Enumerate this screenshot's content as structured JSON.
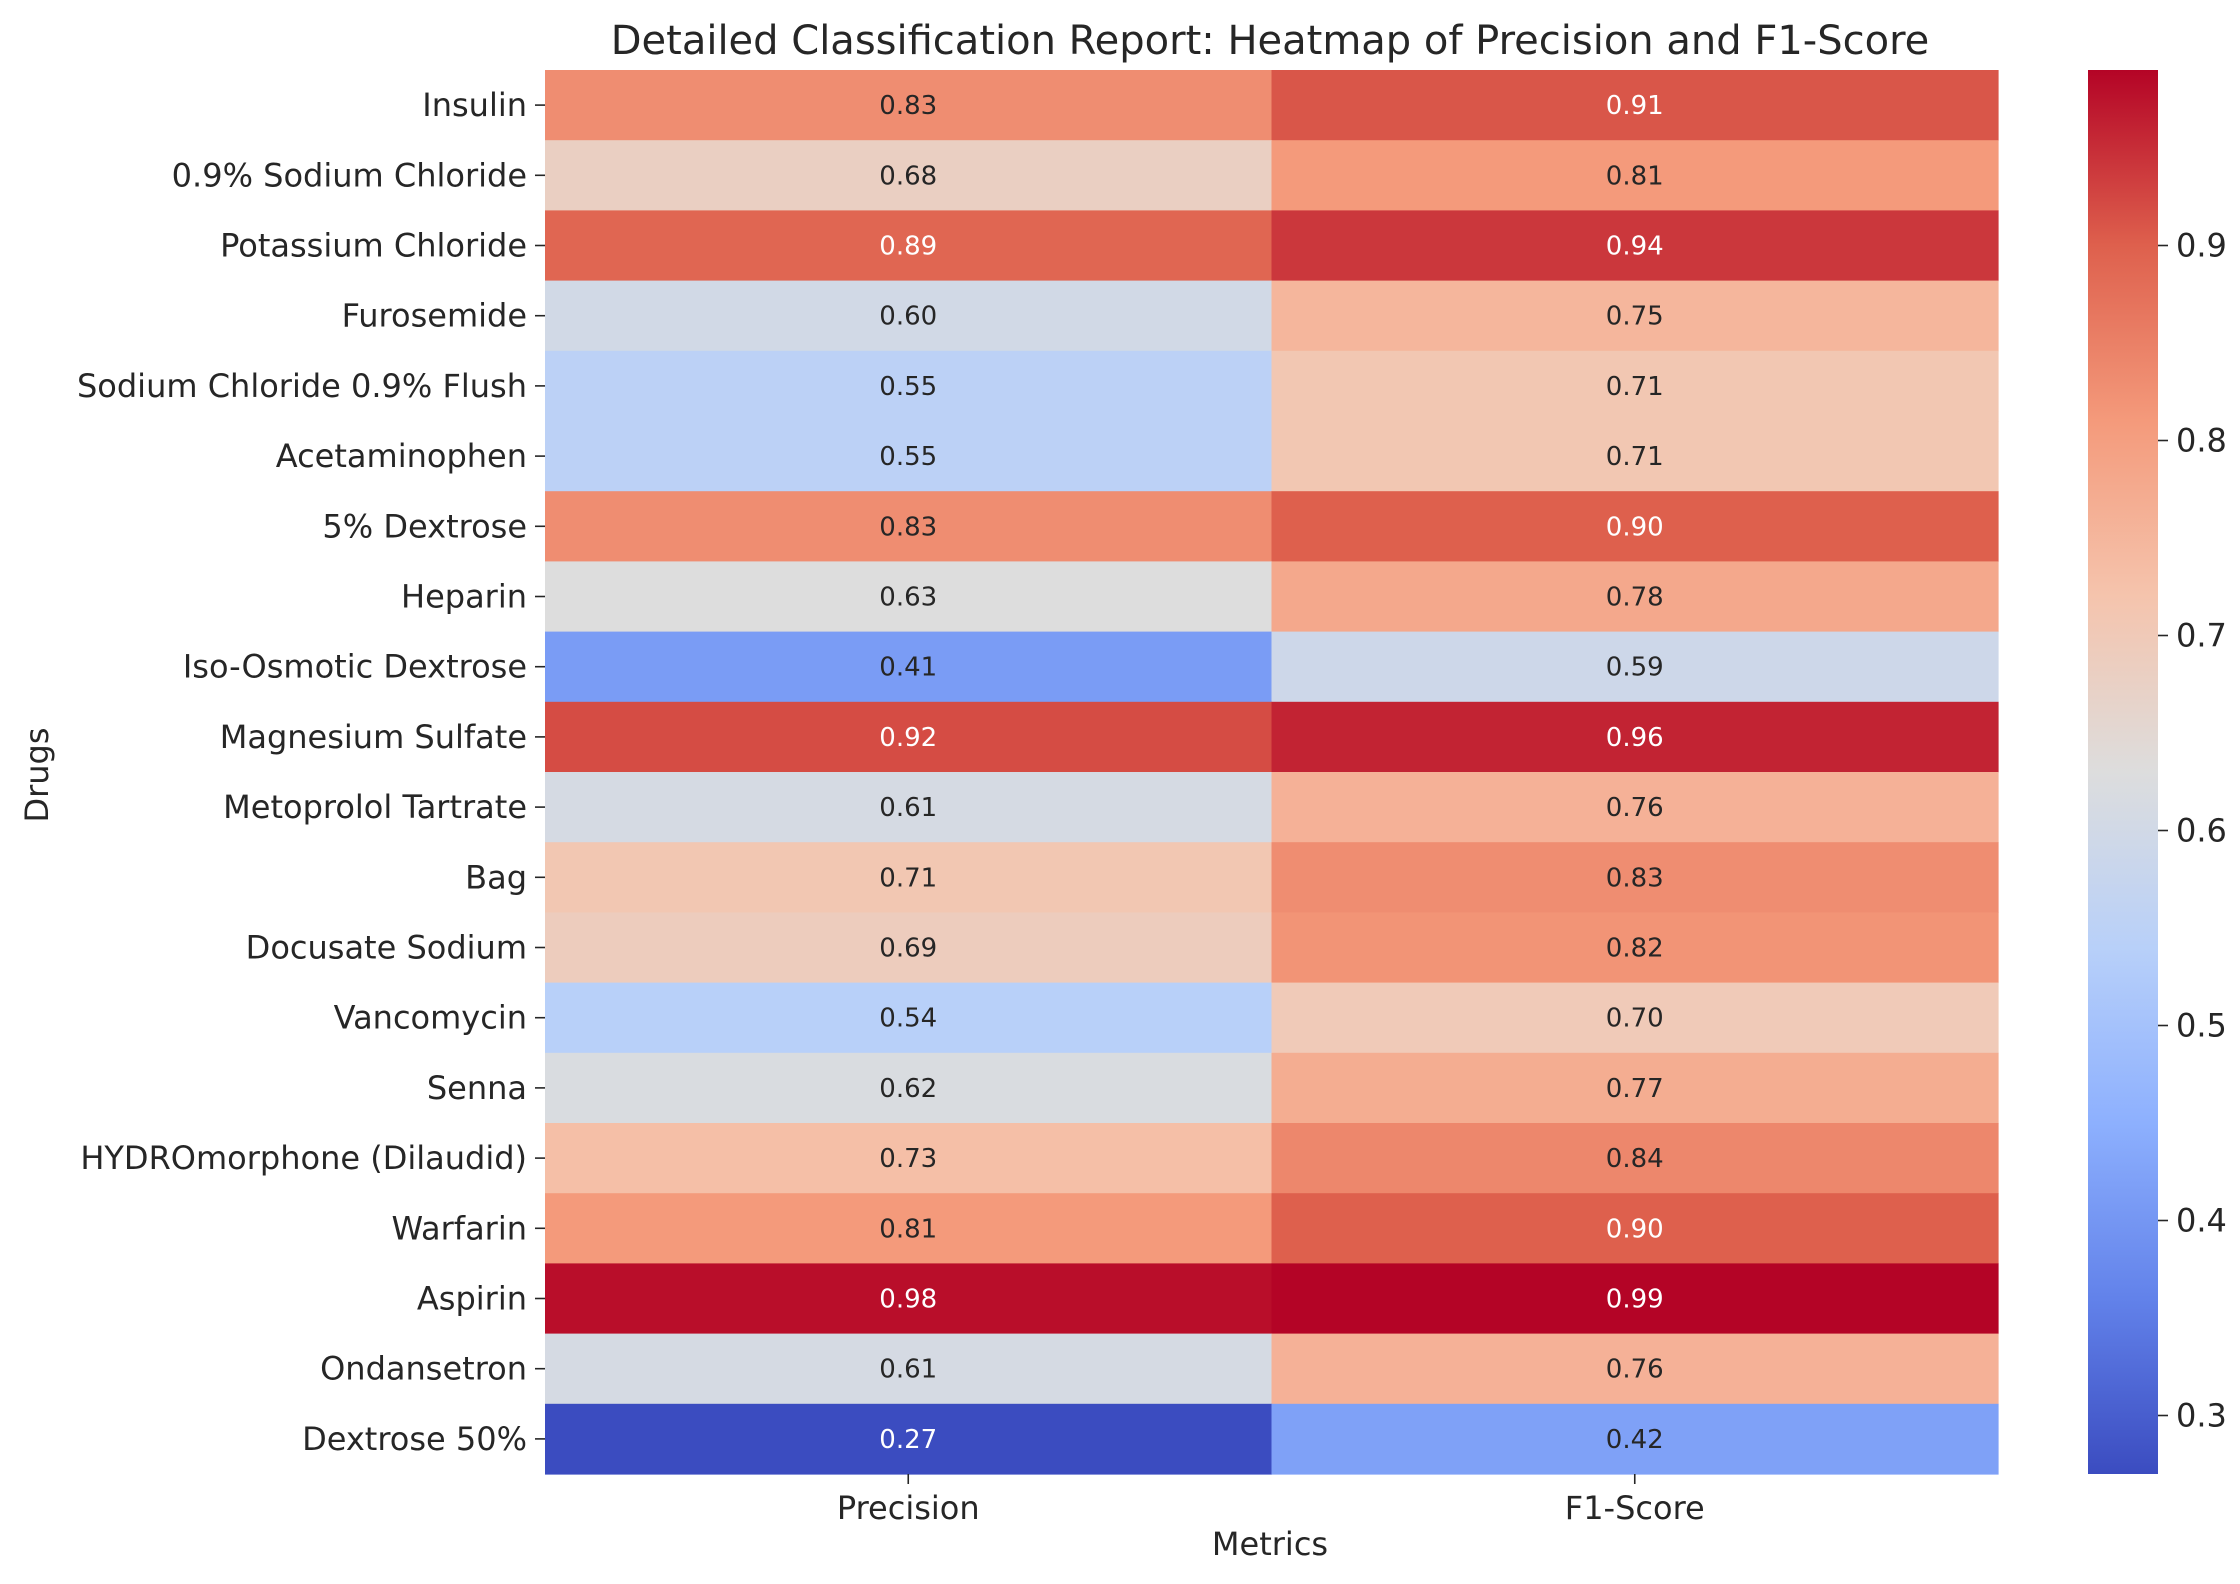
{
  "chart_data": {
    "type": "heatmap",
    "title": "Detailed Classification Report: Heatmap of Precision and F1-Score",
    "xlabel": "Metrics",
    "ylabel": "Drugs",
    "columns": [
      "Precision",
      "F1-Score"
    ],
    "rows": [
      "Insulin",
      "0.9% Sodium Chloride",
      "Potassium Chloride",
      "Furosemide",
      "Sodium Chloride 0.9% Flush",
      "Acetaminophen",
      "5% Dextrose",
      "Heparin",
      "Iso-Osmotic Dextrose",
      "Magnesium Sulfate",
      "Metoprolol Tartrate",
      "Bag",
      "Docusate Sodium",
      "Vancomycin",
      "Senna",
      "HYDROmorphone (Dilaudid)",
      "Warfarin",
      "Aspirin",
      "Ondansetron",
      "Dextrose 50%"
    ],
    "values": [
      [
        0.83,
        0.91
      ],
      [
        0.68,
        0.81
      ],
      [
        0.89,
        0.94
      ],
      [
        0.6,
        0.75
      ],
      [
        0.55,
        0.71
      ],
      [
        0.55,
        0.71
      ],
      [
        0.83,
        0.9
      ],
      [
        0.63,
        0.78
      ],
      [
        0.41,
        0.59
      ],
      [
        0.92,
        0.96
      ],
      [
        0.61,
        0.76
      ],
      [
        0.71,
        0.83
      ],
      [
        0.69,
        0.82
      ],
      [
        0.54,
        0.7
      ],
      [
        0.62,
        0.77
      ],
      [
        0.73,
        0.84
      ],
      [
        0.81,
        0.9
      ],
      [
        0.98,
        0.99
      ],
      [
        0.61,
        0.76
      ],
      [
        0.27,
        0.42
      ]
    ],
    "value_labels": [
      [
        "0.83",
        "0.91"
      ],
      [
        "0.68",
        "0.81"
      ],
      [
        "0.89",
        "0.94"
      ],
      [
        "0.60",
        "0.75"
      ],
      [
        "0.55",
        "0.71"
      ],
      [
        "0.55",
        "0.71"
      ],
      [
        "0.83",
        "0.90"
      ],
      [
        "0.63",
        "0.78"
      ],
      [
        "0.41",
        "0.59"
      ],
      [
        "0.92",
        "0.96"
      ],
      [
        "0.61",
        "0.76"
      ],
      [
        "0.71",
        "0.83"
      ],
      [
        "0.69",
        "0.82"
      ],
      [
        "0.54",
        "0.70"
      ],
      [
        "0.62",
        "0.77"
      ],
      [
        "0.73",
        "0.84"
      ],
      [
        "0.81",
        "0.90"
      ],
      [
        "0.98",
        "0.99"
      ],
      [
        "0.61",
        "0.76"
      ],
      [
        "0.27",
        "0.42"
      ]
    ],
    "colormap": "coolwarm",
    "color_range": [
      0.27,
      0.99
    ],
    "colorbar_ticks": [
      0.3,
      0.4,
      0.5,
      0.6,
      0.7,
      0.8,
      0.9
    ],
    "colorbar_tick_labels": [
      "0.3",
      "0.4",
      "0.5",
      "0.6",
      "0.7",
      "0.8",
      "0.9"
    ],
    "annotations": true,
    "grid": false
  }
}
